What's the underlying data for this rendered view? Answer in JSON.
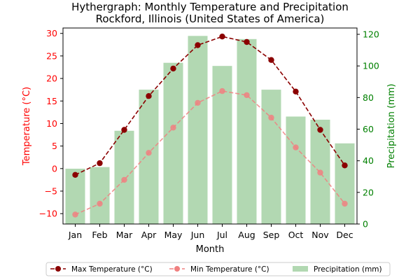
{
  "chart_data": {
    "type": "bar",
    "title_line1": "Hythergraph: Monthly Temperature and Precipitation",
    "title_line2": "Rockford, Illinois (United States of America)",
    "xlabel": "Month",
    "ylabel_left": "Temperature (°C)",
    "ylabel_right": "Precipitation (mm)",
    "categories": [
      "Jan",
      "Feb",
      "Mar",
      "Apr",
      "May",
      "Jun",
      "Jul",
      "Aug",
      "Sep",
      "Oct",
      "Nov",
      "Dec"
    ],
    "ylim_left": [
      -12.3,
      31.2
    ],
    "ylim_right": [
      0,
      124
    ],
    "yticks_left": [
      -10,
      -5,
      0,
      5,
      10,
      15,
      20,
      25,
      30
    ],
    "yticks_right": [
      0,
      20,
      40,
      60,
      80,
      100,
      120
    ],
    "series": [
      {
        "name": "Max Temperature (°C)",
        "kind": "line",
        "axis": "left",
        "values": [
          -1.4,
          1.2,
          8.6,
          16.1,
          22.2,
          27.4,
          29.3,
          28.1,
          24.1,
          17.1,
          8.6,
          0.7
        ]
      },
      {
        "name": "Min Temperature (°C)",
        "kind": "line",
        "axis": "left",
        "values": [
          -10.2,
          -7.8,
          -2.5,
          3.5,
          9.1,
          14.6,
          17.2,
          16.3,
          11.3,
          4.7,
          -0.9,
          -7.8
        ]
      },
      {
        "name": "Precipitation (mm)",
        "kind": "bar",
        "axis": "right",
        "values": [
          35,
          36,
          59,
          85,
          102,
          119,
          100,
          117,
          85,
          68,
          66,
          51
        ]
      }
    ],
    "colors": {
      "max": "#8b0000",
      "min": "#f08080",
      "bar": "#b2d8b2",
      "left_axis": "#ff0000",
      "right_axis": "#008000"
    },
    "legend_position": "bottom"
  }
}
